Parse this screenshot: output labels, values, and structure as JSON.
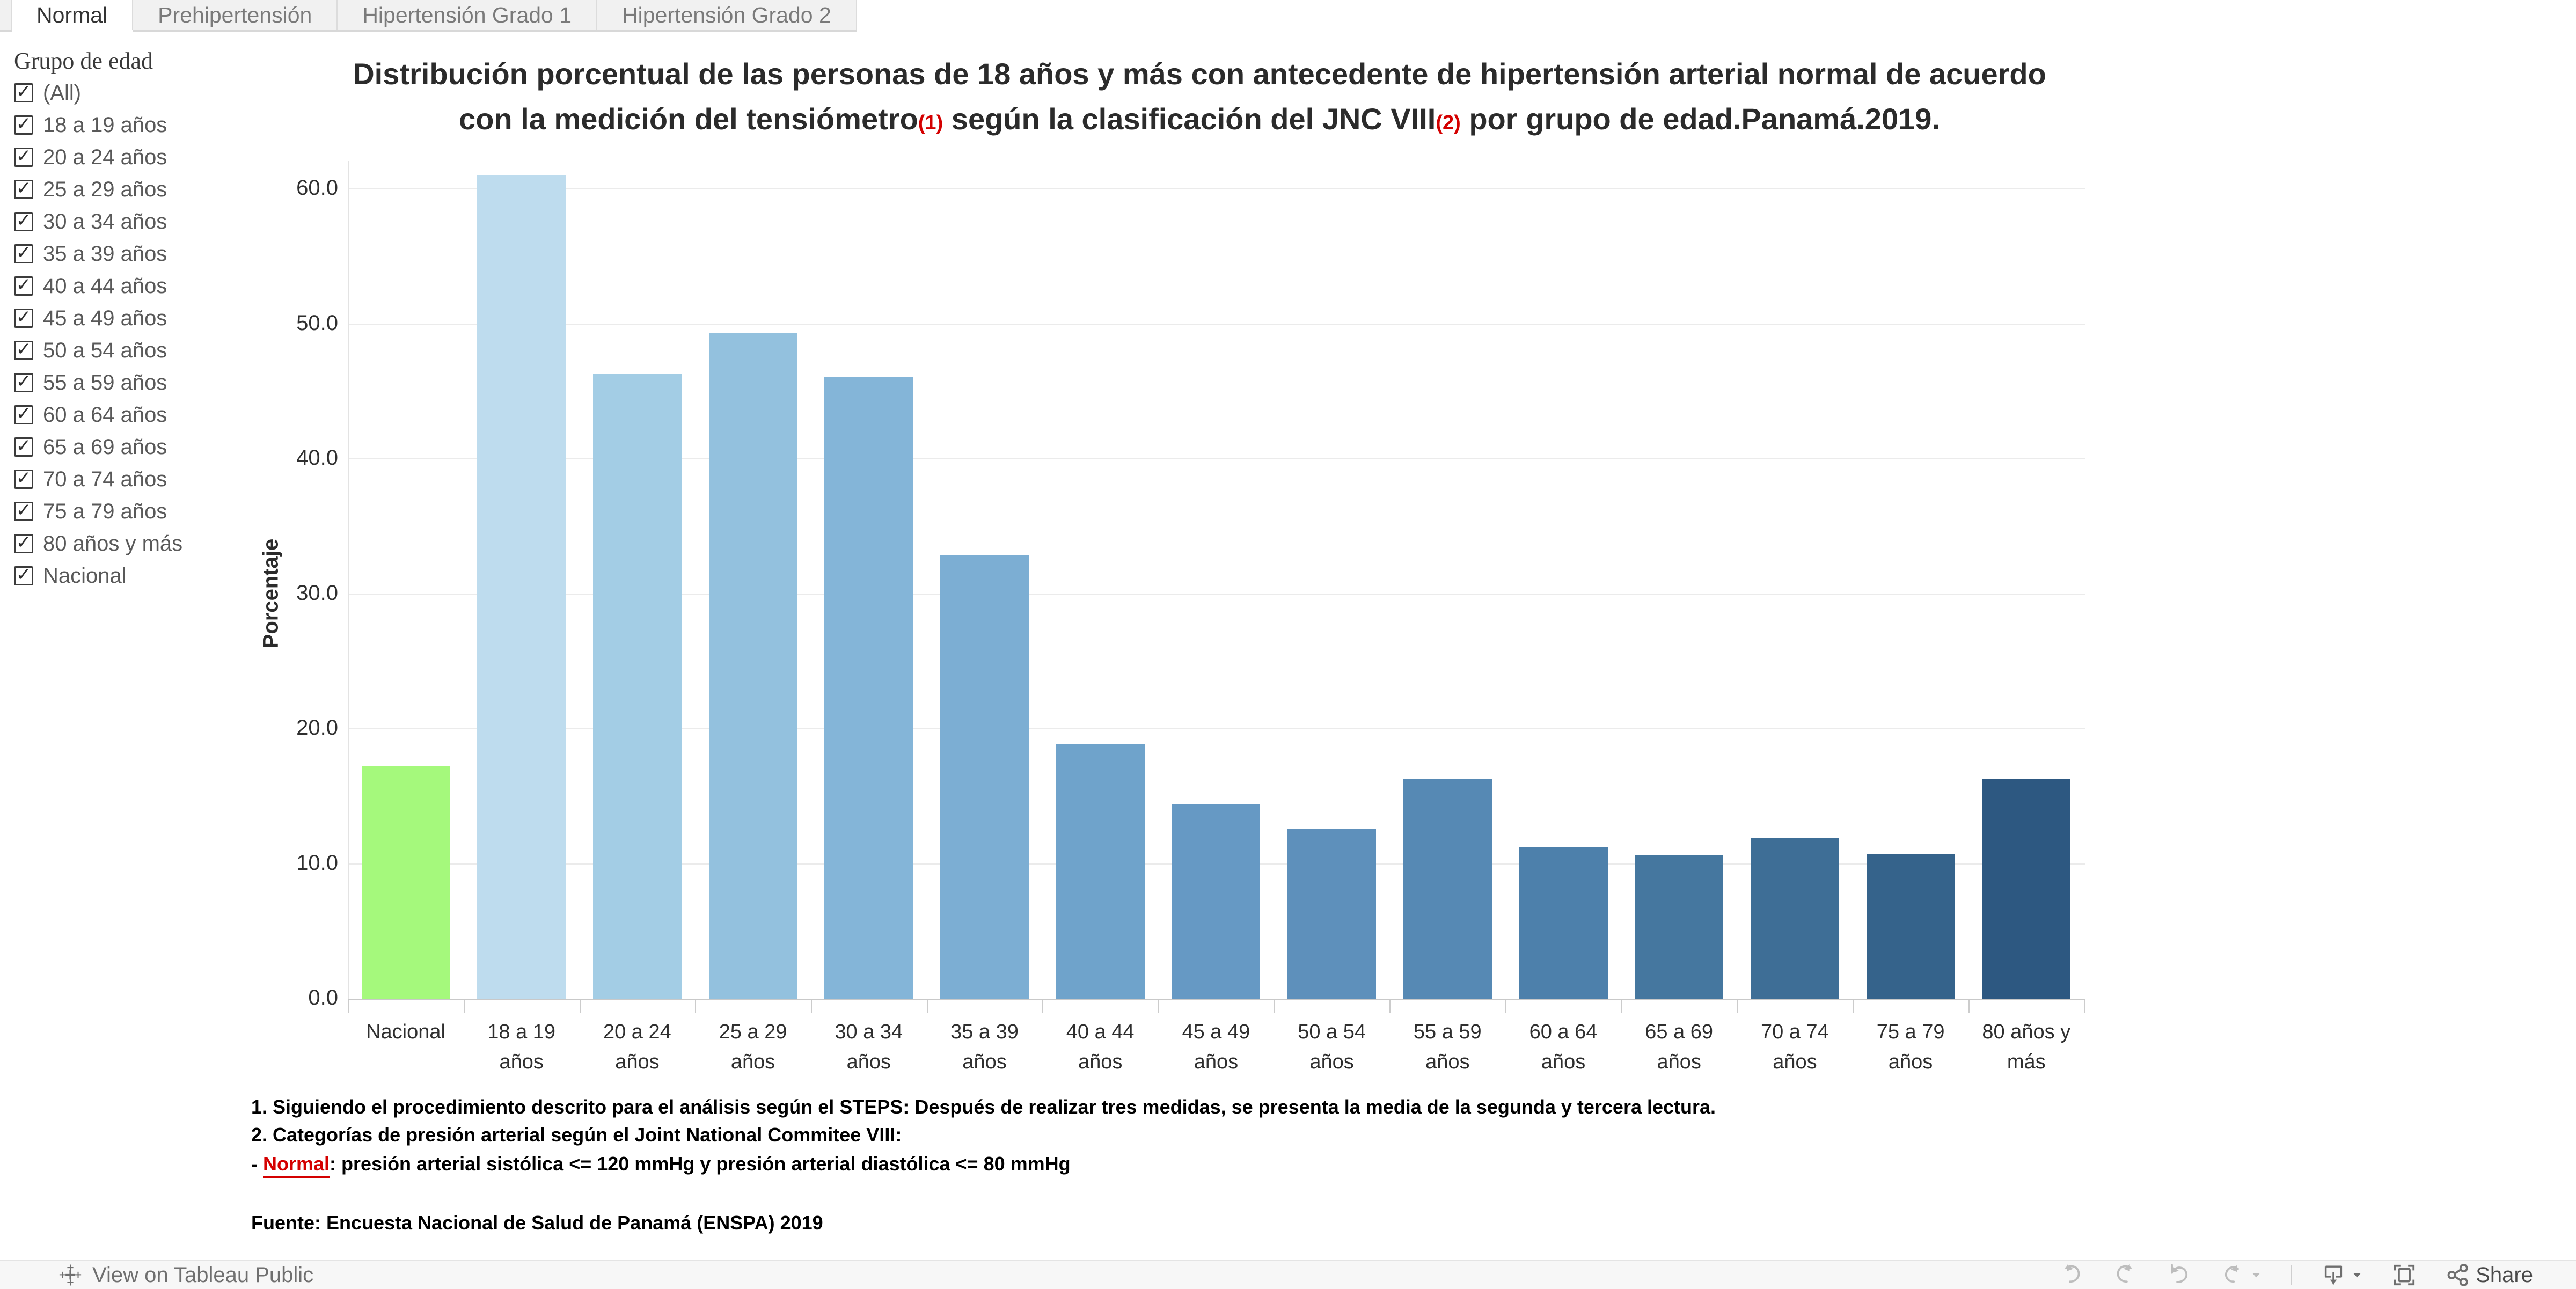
{
  "tabs": {
    "items": [
      {
        "label": "Normal",
        "active": true
      },
      {
        "label": "Prehipertensión",
        "active": false
      },
      {
        "label": "Hipertensión Grado 1",
        "active": false
      },
      {
        "label": "Hipertensión Grado 2",
        "active": false
      }
    ]
  },
  "sidebar": {
    "title": "Grupo de edad",
    "items": [
      "(All)",
      "18 a 19 años",
      "20 a 24 años",
      "25 a 29 años",
      "30 a 34 años",
      "35 a 39 años",
      "40 a 44 años",
      "45 a 49 años",
      "50 a 54 años",
      "55 a 59 años",
      "60 a 64 años",
      "65 a 69 años",
      "70 a 74 años",
      "75 a 79 años",
      "80 años y más",
      "Nacional"
    ],
    "all_checked": true
  },
  "title": {
    "line1": "Distribución porcentual de las personas de 18 años y más con antecedente de hipertensión arterial normal de acuerdo",
    "line2_pre": "con la medición del tensiómetro",
    "sup1": "(1)",
    "line2_mid": " según la clasificación del JNC VIII",
    "sup2": "(2)",
    "line2_post": " por grupo de edad.Panamá.2019."
  },
  "chart_data": {
    "type": "bar",
    "categories": [
      "Nacional",
      "18 a 19 años",
      "20 a 24 años",
      "25 a 29 años",
      "30 a 34 años",
      "35 a 39 años",
      "40 a 44 años",
      "45 a 49 años",
      "50 a 54 años",
      "55 a 59 años",
      "60 a 64 años",
      "65 a 69 años",
      "70 a 74 años",
      "75 a 79 años",
      "80 años y más"
    ],
    "category_labels": [
      [
        "Nacional"
      ],
      [
        "18 a 19",
        "años"
      ],
      [
        "20 a 24",
        "años"
      ],
      [
        "25 a 29",
        "años"
      ],
      [
        "30 a 34",
        "años"
      ],
      [
        "35 a 39",
        "años"
      ],
      [
        "40 a 44",
        "años"
      ],
      [
        "45 a 49",
        "años"
      ],
      [
        "50 a 54",
        "años"
      ],
      [
        "55 a 59",
        "años"
      ],
      [
        "60 a 64",
        "años"
      ],
      [
        "65 a 69",
        "años"
      ],
      [
        "70 a 74",
        "años"
      ],
      [
        "75 a 79",
        "años"
      ],
      [
        "80 años y",
        "más"
      ]
    ],
    "values": [
      17.2,
      61.0,
      46.3,
      49.3,
      46.1,
      32.9,
      18.9,
      14.4,
      12.6,
      16.3,
      11.2,
      10.6,
      11.9,
      10.7,
      16.3
    ],
    "bar_colors": [
      "#a5f97c",
      "#bedcee",
      "#a3cde5",
      "#93c1de",
      "#84b5d8",
      "#7caed3",
      "#6fa3cb",
      "#6699c4",
      "#5e90bb",
      "#5689b4",
      "#4d80ab",
      "#45779f",
      "#3e6e96",
      "#35638b",
      "#2d5881"
    ],
    "title": "Distribución porcentual de las personas de 18 años y más con antecedente de hipertensión arterial normal de acuerdo con la medición del tensiómetro(1) según la clasificación del JNC VIII(2) por grupo de edad.Panamá.2019.",
    "xlabel": "",
    "ylabel": "Porcentaje",
    "y_ticks": [
      "0.0",
      "10.0",
      "20.0",
      "30.0",
      "40.0",
      "50.0",
      "60.0"
    ],
    "ylim": [
      0,
      62
    ],
    "grid": true,
    "legend": false
  },
  "footnotes": {
    "line1": "1. Siguiendo el procedimiento descrito para el análisis según el STEPS: Después de realizar tres medidas, se presenta la media de la segunda y tercera lectura.",
    "line2": "2. Categorías de presión arterial según el Joint National Commitee VIII:",
    "line3_prefix": "- ",
    "line3_term": "Normal",
    "line3_rest": ": presión arterial sistólica <= 120 mmHg y presión arterial diastólica <= 80 mmHg",
    "source": "Fuente: Encuesta Nacional de Salud de Panamá (ENSPA) 2019"
  },
  "toolbar": {
    "view_label": "View on Tableau Public",
    "share_label": "Share"
  },
  "colors": {
    "accent_red": "#d40000",
    "nacional_green": "#a5f97c",
    "tab_bg": "#f1f1f1",
    "grid": "#ebebeb"
  }
}
